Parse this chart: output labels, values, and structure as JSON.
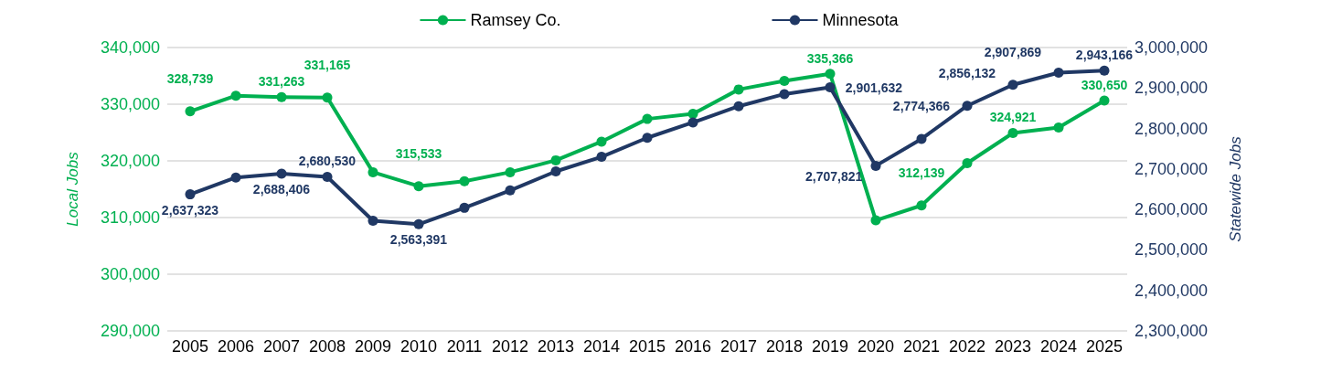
{
  "chart_data": {
    "type": "line",
    "ylabel": "Local Jobs",
    "y2label": "Statewide Jobs",
    "categories": [
      "2005",
      "2006",
      "2007",
      "2008",
      "2009",
      "2010",
      "2011",
      "2012",
      "2013",
      "2014",
      "2015",
      "2016",
      "2017",
      "2018",
      "2019",
      "2020",
      "2021",
      "2022",
      "2023",
      "2024",
      "2025"
    ],
    "series": [
      {
        "name": "Ramsey Co.",
        "color": "#00b050",
        "values": [
          328739,
          331500,
          331263,
          331165,
          318000,
          315533,
          316400,
          318000,
          320100,
          323400,
          327400,
          328300,
          332600,
          334100,
          335366,
          309500,
          312139,
          319600,
          324921,
          325900,
          330650
        ],
        "value_labels": [
          "328,739",
          null,
          "331,263",
          "331,165",
          null,
          "315,533",
          null,
          null,
          null,
          null,
          null,
          null,
          null,
          null,
          "335,366",
          null,
          "312,139",
          null,
          "324,921",
          null,
          "330,650"
        ]
      },
      {
        "name": "Minnesota",
        "color": "#203864",
        "axis": "y2",
        "values": [
          2637323,
          2679000,
          2688406,
          2680530,
          2572000,
          2563391,
          2604000,
          2647000,
          2694000,
          2730000,
          2777000,
          2815000,
          2855000,
          2885000,
          2901632,
          2707821,
          2774366,
          2856132,
          2907869,
          2938000,
          2943166
        ],
        "value_labels": [
          "2,637,323",
          null,
          "2,688,406",
          "2,680,530",
          null,
          "2,563,391",
          null,
          null,
          null,
          null,
          null,
          null,
          null,
          null,
          "2,901,632",
          "2,707,821",
          "2,774,366",
          "2,856,132",
          "2,907,869",
          null,
          "2,943,166"
        ]
      }
    ],
    "ylim": [
      290000,
      340000
    ],
    "yticks": [
      {
        "value": 290000,
        "label": "290,000"
      },
      {
        "value": 300000,
        "label": "300,000"
      },
      {
        "value": 310000,
        "label": "310,000"
      },
      {
        "value": 320000,
        "label": "320,000"
      },
      {
        "value": 330000,
        "label": "330,000"
      },
      {
        "value": 340000,
        "label": "340,000"
      }
    ],
    "y2lim": [
      2300000,
      3000000
    ],
    "y2ticks": [
      {
        "value": 2300000,
        "label": "2,300,000"
      },
      {
        "value": 2400000,
        "label": "2,400,000"
      },
      {
        "value": 2500000,
        "label": "2,500,000"
      },
      {
        "value": 2600000,
        "label": "2,600,000"
      },
      {
        "value": 2700000,
        "label": "2,700,000"
      },
      {
        "value": 2800000,
        "label": "2,800,000"
      },
      {
        "value": 2900000,
        "label": "2,900,000"
      },
      {
        "value": 3000000,
        "label": "3,000,000"
      }
    ],
    "grid": "y",
    "legend": "top",
    "marker": "circle",
    "line_style": "solid"
  }
}
